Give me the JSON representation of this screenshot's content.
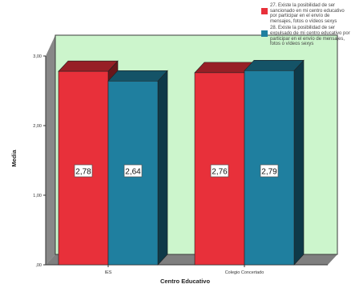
{
  "chart_data": {
    "type": "bar",
    "categories": [
      "IES",
      "Colegio Concertado"
    ],
    "series": [
      {
        "name": "27. Existe la posibilidad de ser sancionado en mi centro educativo por participar en el envío de mensajes, fotos o vídeos sexys",
        "color": "#E8303A",
        "values": [
          2.78,
          2.76
        ],
        "labels": [
          "2,78",
          "2,76"
        ]
      },
      {
        "name": "28. Existe la posibilidad de ser expulsado de mi centro educativo por participar en el envío de mensajes, fotos o vídeos sexys",
        "color": "#1F7F9F",
        "values": [
          2.64,
          2.79
        ],
        "labels": [
          "2,64",
          "2,79"
        ]
      }
    ],
    "xlabel": "Centro Educativo",
    "ylabel": "Media",
    "ylim": [
      0,
      3
    ],
    "yticks": [
      0,
      1,
      2,
      3
    ],
    "ytick_labels": [
      ",00",
      "1,00",
      "2,00",
      "3,00"
    ],
    "grid": false,
    "legend_position": "top-right",
    "plot_background": "#CCF5CC"
  }
}
